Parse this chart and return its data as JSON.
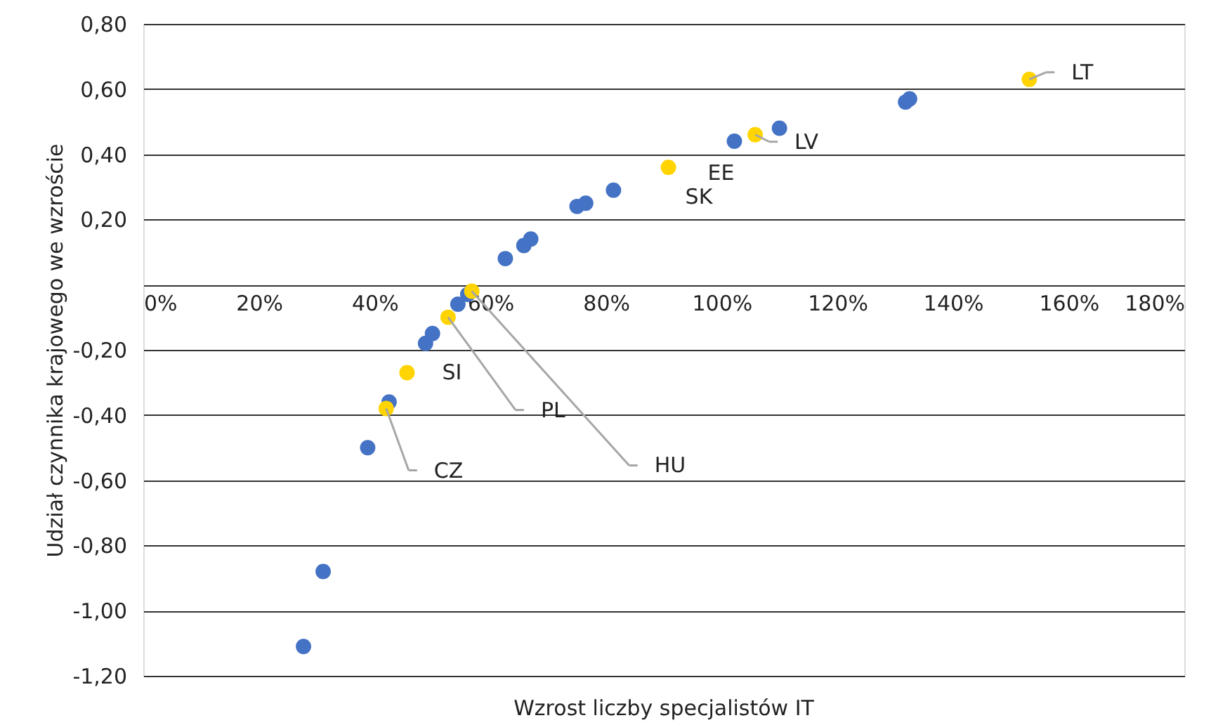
{
  "chart_data": {
    "type": "scatter",
    "xlabel": "Wzrost liczby specjalistów IT",
    "ylabel": "Udział czynnika krajowego we wzroście",
    "series": [
      {
        "color": "#4472c4",
        "x": [
          27.7,
          31.1,
          38.8,
          42.5,
          48.8,
          50.0,
          54.4,
          56.1,
          62.6,
          65.8,
          67.0,
          75.0,
          76.5,
          81.3,
          102.2,
          110.0,
          131.8,
          132.5
        ],
        "values": [
          -1.11,
          -0.88,
          -0.5,
          -0.36,
          -0.18,
          -0.15,
          -0.06,
          -0.03,
          0.08,
          0.12,
          0.14,
          0.24,
          0.25,
          0.29,
          0.44,
          0.48,
          0.56,
          0.57
        ]
      },
      {
        "color": "#ffd400",
        "x": [
          153.2,
          105.8,
          90.8,
          45.6,
          42.0,
          52.7,
          56.8
        ],
        "values": [
          0.63,
          0.46,
          0.36,
          -0.27,
          -0.38,
          -0.1,
          -0.02
        ]
      }
    ],
    "annotations": [
      {
        "text": "LT",
        "x": 153.2,
        "y": 0.63
      },
      {
        "text": "LV",
        "x": 105.8,
        "y": 0.46
      },
      {
        "text": "EE",
        "x": 90.8,
        "y": 0.36
      },
      {
        "text": "SK",
        "x": 90.8,
        "y": 0.36
      },
      {
        "text": "SI",
        "x": 45.6,
        "y": -0.27
      },
      {
        "text": "CZ",
        "x": 42.0,
        "y": -0.38
      },
      {
        "text": "PL",
        "x": 52.7,
        "y": -0.1
      },
      {
        "text": "HU",
        "x": 56.8,
        "y": -0.02
      }
    ],
    "xlim": [
      0,
      180
    ],
    "xticks": [
      {
        "value": 0,
        "label": "0%"
      },
      {
        "value": 20,
        "label": "20%"
      },
      {
        "value": 40,
        "label": "40%"
      },
      {
        "value": 60,
        "label": "60%"
      },
      {
        "value": 80,
        "label": "80%"
      },
      {
        "value": 100,
        "label": "100%"
      },
      {
        "value": 120,
        "label": "120%"
      },
      {
        "value": 140,
        "label": "140%"
      },
      {
        "value": 160,
        "label": "160%"
      },
      {
        "value": 180,
        "label": "180%"
      }
    ],
    "ylim": [
      -1.2,
      0.8
    ],
    "yticks": [
      {
        "value": -1.2,
        "label": "-1,20"
      },
      {
        "value": -1.0,
        "label": "-1,00"
      },
      {
        "value": -0.8,
        "label": "-0,80"
      },
      {
        "value": -0.6,
        "label": "-0,60"
      },
      {
        "value": -0.4,
        "label": "-0,40"
      },
      {
        "value": -0.2,
        "label": "-0,20"
      },
      {
        "value": 0,
        "label": null
      },
      {
        "value": 0.2,
        "label": "0,20"
      },
      {
        "value": 0.4,
        "label": "0,40"
      },
      {
        "value": 0.6,
        "label": "0,60"
      },
      {
        "value": 0.8,
        "label": "0,80"
      }
    ],
    "grid": "y",
    "marker": "circle"
  }
}
